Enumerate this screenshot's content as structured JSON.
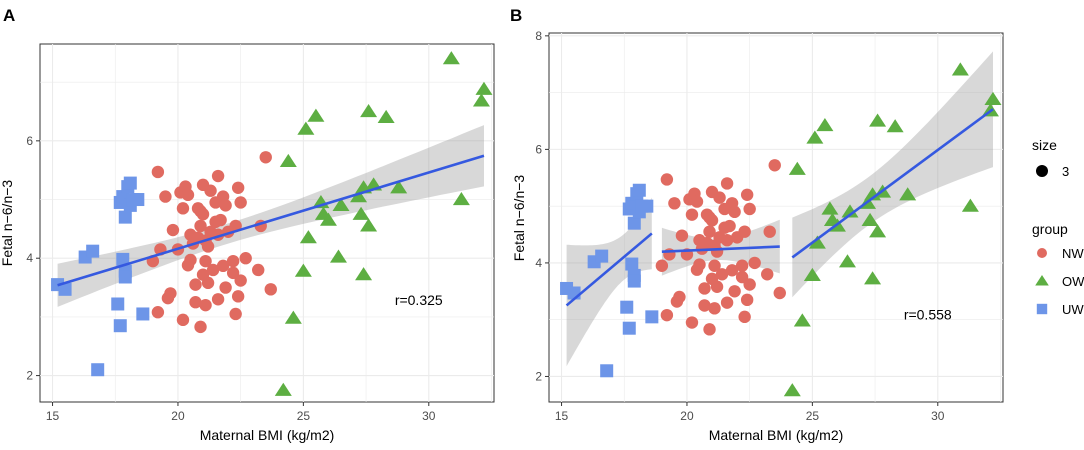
{
  "chart_data": [
    {
      "panel_label": "A",
      "type": "scatter",
      "xlabel": "Maternal BMI (kg/m2)",
      "ylabel": "Fetal n−6/n−3",
      "xlim": [
        14.5,
        32.6
      ],
      "ylim": [
        1.55,
        7.65
      ],
      "xticks": [
        15,
        20,
        25,
        30
      ],
      "yticks": [
        2,
        4,
        6
      ],
      "annotation": {
        "text": "r=0.325",
        "x": 29.6,
        "y": 3.2
      },
      "fit": "single",
      "grid": true,
      "legend": "none"
    },
    {
      "panel_label": "B",
      "type": "scatter",
      "xlabel": "Maternal BMI (kg/m2)",
      "ylabel": "Fetal n−6/n−3",
      "xlim": [
        14.5,
        32.6
      ],
      "ylim": [
        1.55,
        8.05
      ],
      "xticks": [
        15,
        20,
        25,
        30
      ],
      "yticks": [
        2,
        4,
        6,
        8
      ],
      "annotation": {
        "text": "r=0.558",
        "x": 29.6,
        "y": 3.0
      },
      "fit": "per-group",
      "grid": true,
      "legend": "right"
    }
  ],
  "groups": [
    {
      "name": "NW",
      "color": "#E06A60",
      "shape": "circle"
    },
    {
      "name": "OW",
      "color": "#5DAE42",
      "shape": "triangle"
    },
    {
      "name": "UW",
      "color": "#6D95E8",
      "shape": "square"
    }
  ],
  "points": {
    "NW": [
      [
        19.2,
        5.47
      ],
      [
        19.5,
        5.05
      ],
      [
        19.8,
        4.48
      ],
      [
        19.3,
        4.15
      ],
      [
        19.0,
        3.95
      ],
      [
        19.7,
        3.4
      ],
      [
        19.6,
        3.32
      ],
      [
        19.2,
        3.08
      ],
      [
        20.0,
        4.15
      ],
      [
        20.1,
        5.12
      ],
      [
        20.3,
        5.22
      ],
      [
        20.2,
        4.85
      ],
      [
        20.5,
        3.97
      ],
      [
        20.4,
        3.88
      ],
      [
        20.5,
        4.4
      ],
      [
        20.6,
        4.25
      ],
      [
        20.7,
        3.55
      ],
      [
        20.7,
        3.25
      ],
      [
        20.9,
        2.83
      ],
      [
        20.2,
        2.95
      ],
      [
        20.8,
        4.85
      ],
      [
        20.9,
        4.8
      ],
      [
        21.0,
        4.75
      ],
      [
        20.9,
        4.55
      ],
      [
        21.1,
        4.3
      ],
      [
        21.2,
        4.2
      ],
      [
        21.3,
        4.45
      ],
      [
        21.1,
        3.95
      ],
      [
        21.0,
        3.72
      ],
      [
        21.4,
        3.8
      ],
      [
        21.2,
        3.58
      ],
      [
        21.1,
        3.2
      ],
      [
        21.5,
        4.95
      ],
      [
        21.5,
        4.62
      ],
      [
        21.6,
        5.4
      ],
      [
        21.3,
        5.15
      ],
      [
        21.8,
        5.05
      ],
      [
        21.9,
        4.9
      ],
      [
        21.7,
        4.65
      ],
      [
        21.6,
        4.4
      ],
      [
        22.0,
        4.45
      ],
      [
        21.8,
        3.87
      ],
      [
        21.9,
        3.5
      ],
      [
        21.6,
        3.3
      ],
      [
        22.2,
        3.95
      ],
      [
        22.3,
        4.55
      ],
      [
        22.4,
        5.2
      ],
      [
        22.5,
        4.95
      ],
      [
        22.2,
        3.75
      ],
      [
        22.5,
        3.62
      ],
      [
        22.4,
        3.35
      ],
      [
        22.3,
        3.05
      ],
      [
        22.7,
        4.0
      ],
      [
        23.3,
        4.55
      ],
      [
        23.2,
        3.8
      ],
      [
        23.5,
        5.72
      ],
      [
        23.7,
        3.47
      ],
      [
        21.0,
        5.25
      ],
      [
        20.4,
        5.08
      ],
      [
        20.8,
        4.35
      ]
    ],
    "OW": [
      [
        24.2,
        1.75
      ],
      [
        24.4,
        5.65
      ],
      [
        24.6,
        2.98
      ],
      [
        25.0,
        3.78
      ],
      [
        25.1,
        6.2
      ],
      [
        25.2,
        4.35
      ],
      [
        25.5,
        6.42
      ],
      [
        25.7,
        4.95
      ],
      [
        25.8,
        4.75
      ],
      [
        26.0,
        4.65
      ],
      [
        26.4,
        4.02
      ],
      [
        26.5,
        4.9
      ],
      [
        27.2,
        5.05
      ],
      [
        27.3,
        4.75
      ],
      [
        27.4,
        3.72
      ],
      [
        27.4,
        5.2
      ],
      [
        27.6,
        6.5
      ],
      [
        27.6,
        4.55
      ],
      [
        27.8,
        5.25
      ],
      [
        28.3,
        6.4
      ],
      [
        28.8,
        5.2
      ],
      [
        30.9,
        7.4
      ],
      [
        31.3,
        5.0
      ],
      [
        32.1,
        6.68
      ],
      [
        32.2,
        6.88
      ]
    ],
    "UW": [
      [
        15.2,
        3.55
      ],
      [
        15.5,
        3.47
      ],
      [
        16.3,
        4.02
      ],
      [
        16.6,
        4.12
      ],
      [
        16.8,
        2.1
      ],
      [
        17.6,
        3.22
      ],
      [
        17.7,
        2.85
      ],
      [
        17.8,
        3.98
      ],
      [
        17.9,
        3.78
      ],
      [
        17.9,
        3.68
      ],
      [
        17.7,
        4.95
      ],
      [
        17.8,
        5.05
      ],
      [
        18.0,
        5.22
      ],
      [
        18.1,
        5.28
      ],
      [
        17.9,
        4.7
      ],
      [
        18.1,
        4.9
      ],
      [
        18.2,
        5.0
      ],
      [
        18.4,
        5.0
      ],
      [
        18.6,
        3.05
      ]
    ]
  },
  "legend_content": {
    "size_title": "size",
    "size_value": "3",
    "group_title": "group",
    "labels": [
      "NW",
      "OW",
      "UW"
    ]
  }
}
